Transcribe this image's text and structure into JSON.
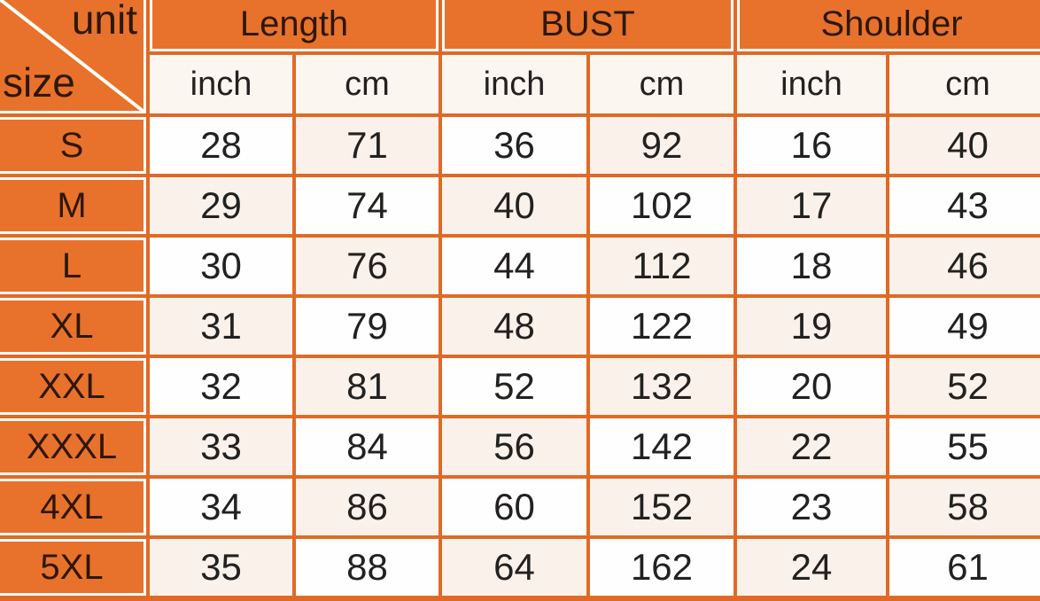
{
  "chart_data": {
    "type": "table",
    "corner": {
      "top_label": "unit",
      "bottom_label": "size"
    },
    "column_groups": [
      {
        "label": "Length",
        "sub_columns": [
          "inch",
          "cm"
        ]
      },
      {
        "label": "BUST",
        "sub_columns": [
          "inch",
          "cm"
        ]
      },
      {
        "label": "Shoulder",
        "sub_columns": [
          "inch",
          "cm"
        ]
      }
    ],
    "rows": [
      {
        "size": "S",
        "values": [
          28,
          71,
          36,
          92,
          16,
          40
        ]
      },
      {
        "size": "M",
        "values": [
          29,
          74,
          40,
          102,
          17,
          43
        ]
      },
      {
        "size": "L",
        "values": [
          30,
          76,
          44,
          112,
          18,
          46
        ]
      },
      {
        "size": "XL",
        "values": [
          31,
          79,
          48,
          122,
          19,
          49
        ]
      },
      {
        "size": "XXL",
        "values": [
          32,
          81,
          52,
          132,
          20,
          52
        ]
      },
      {
        "size": "XXXL",
        "values": [
          33,
          84,
          56,
          142,
          22,
          55
        ]
      },
      {
        "size": "4XL",
        "values": [
          34,
          86,
          60,
          152,
          23,
          58
        ]
      },
      {
        "size": "5XL",
        "values": [
          35,
          88,
          64,
          162,
          24,
          61
        ]
      }
    ]
  },
  "colors": {
    "header_fill": "#e8722c",
    "grid_line": "#e06a25",
    "cell_white": "#fefefe",
    "cell_cream": "#faf2ea",
    "subheader_fill": "#fcf6f0",
    "divider_white": "#fffdf9",
    "header_text": "#2d1708",
    "cell_text": "#232120"
  }
}
